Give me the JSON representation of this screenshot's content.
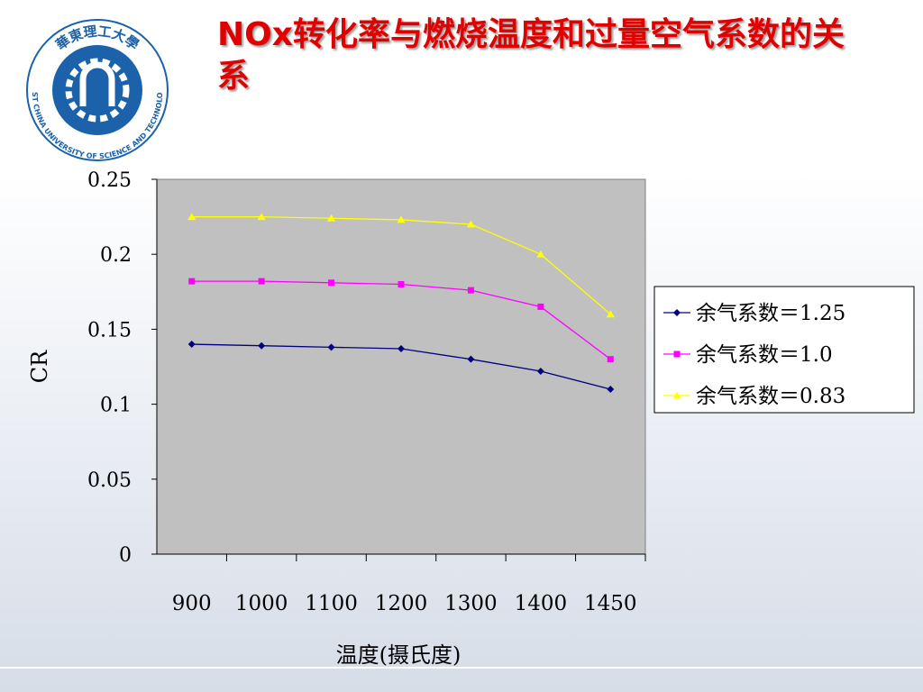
{
  "logo": {
    "name_cn": "華東理工大學",
    "name_en": "EAST CHINA UNIVERSITY OF SCIENCE AND TECHNOLOGY"
  },
  "chart_data": {
    "type": "line",
    "title": "NOx转化率与燃烧温度和过量空气系数的关系",
    "x_label": "温度(摄氏度)",
    "y_label": "CR",
    "categories": [
      "900",
      "1000",
      "1100",
      "1200",
      "1300",
      "1400",
      "1450"
    ],
    "series": [
      {
        "name": "余气系数＝1.25",
        "color": "#000080",
        "marker": "diamond",
        "values": [
          0.14,
          0.139,
          0.138,
          0.137,
          0.13,
          0.122,
          0.11
        ]
      },
      {
        "name": "余气系数＝1.0",
        "color": "#ff00ff",
        "marker": "square",
        "values": [
          0.182,
          0.182,
          0.181,
          0.18,
          0.176,
          0.165,
          0.13
        ]
      },
      {
        "name": "余气系数＝0.83",
        "color": "#ffff00",
        "marker": "triangle",
        "values": [
          0.225,
          0.225,
          0.224,
          0.223,
          0.22,
          0.2,
          0.16
        ]
      }
    ],
    "ylim": [
      0,
      0.25
    ],
    "yticks": [
      0,
      0.05,
      0.1,
      0.15,
      0.2,
      0.25
    ],
    "grid": false,
    "legend": "right",
    "plot_background": "#c0c0c0"
  }
}
